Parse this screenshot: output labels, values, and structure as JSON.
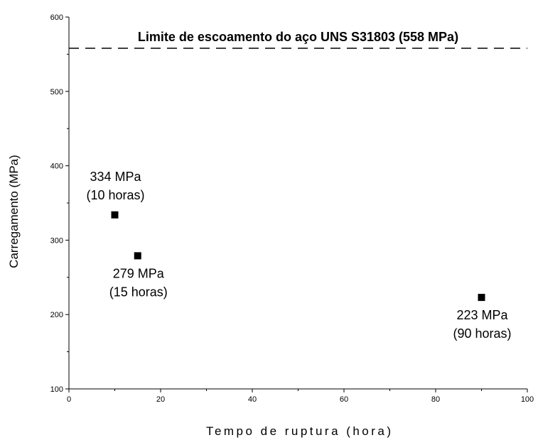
{
  "chart_data": {
    "type": "scatter",
    "xlabel": "Tempo de ruptura (hora)",
    "ylabel": "Carregamento (MPa)",
    "xlim": [
      0,
      100
    ],
    "ylim": [
      100,
      600
    ],
    "x_ticks": [
      0,
      20,
      40,
      60,
      80,
      100
    ],
    "y_ticks": [
      100,
      200,
      300,
      400,
      500,
      600
    ],
    "grid": false,
    "marker_color": "#000000",
    "series": [
      {
        "x": [
          10,
          15,
          90
        ],
        "y": [
          334,
          279,
          223
        ]
      }
    ],
    "annotations": [
      {
        "x": 10,
        "y": 334,
        "line1": "334 MPa",
        "line2": "(10 horas)",
        "position": "above"
      },
      {
        "x": 15,
        "y": 279,
        "line1": "279 MPa",
        "line2": "(15 horas)",
        "position": "below"
      },
      {
        "x": 90,
        "y": 223,
        "line1": "223 MPa",
        "line2": "(90 horas)",
        "position": "below"
      }
    ],
    "reference_line": {
      "y": 558,
      "style": "dashed",
      "label": "Limite de escoamento do aço UNS S31803 (558 MPa)"
    }
  }
}
